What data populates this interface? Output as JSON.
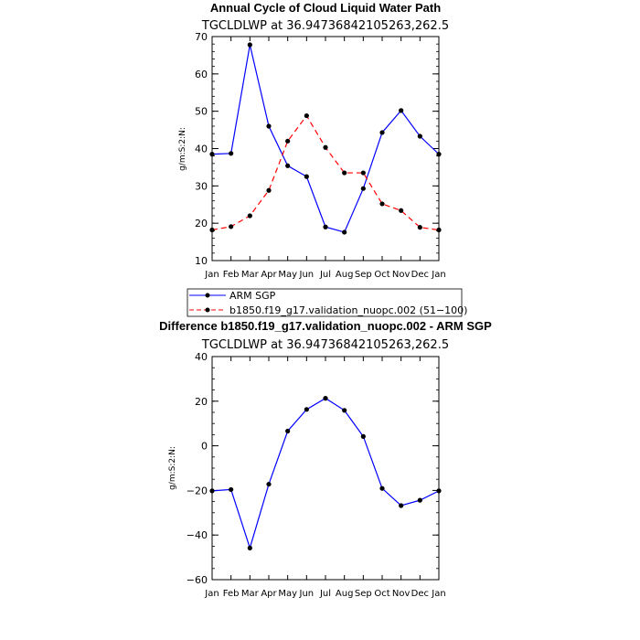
{
  "chart_data": [
    {
      "type": "line",
      "title": "Annual Cycle of Cloud Liquid Water Path",
      "subtitle": "TGCLDLWP at 36.94736842105263,262.5",
      "ylabel": "g/m:S:2:N:",
      "xlabel": "",
      "categories": [
        "Jan",
        "Feb",
        "Mar",
        "Apr",
        "May",
        "Jun",
        "Jul",
        "Aug",
        "Sep",
        "Oct",
        "Nov",
        "Dec",
        "Jan"
      ],
      "ylim": [
        10,
        70
      ],
      "yticks": [
        10,
        20,
        30,
        40,
        50,
        60,
        70
      ],
      "series": [
        {
          "name": "ARM SGP",
          "color": "#0000ff",
          "dash": "solid",
          "values": [
            38.5,
            38.7,
            67.8,
            46.0,
            35.4,
            32.5,
            19.0,
            17.6,
            29.3,
            44.3,
            50.2,
            43.3,
            38.5
          ]
        },
        {
          "name": "b1850.f19_g17.validation_nuopc.002 (51−100)",
          "color": "#ff0000",
          "dash": "dashed",
          "values": [
            18.2,
            19.1,
            22.0,
            28.8,
            42.0,
            48.8,
            40.3,
            33.5,
            33.5,
            25.2,
            23.4,
            18.9,
            18.2
          ]
        }
      ],
      "legend_placement": "below"
    },
    {
      "type": "line",
      "title": "Difference b1850.f19_g17.validation_nuopc.002 - ARM SGP",
      "subtitle": "TGCLDLWP at 36.94736842105263,262.5",
      "ylabel": "g/m:S:2:N:",
      "xlabel": "",
      "categories": [
        "Jan",
        "Feb",
        "Mar",
        "Apr",
        "May",
        "Jun",
        "Jul",
        "Aug",
        "Sep",
        "Oct",
        "Nov",
        "Dec",
        "Jan"
      ],
      "ylim": [
        -60,
        40
      ],
      "yticks": [
        -60,
        -40,
        -20,
        0,
        20,
        40
      ],
      "series": [
        {
          "color": "#0000ff",
          "dash": "solid",
          "values": [
            -20.2,
            -19.6,
            -45.8,
            -17.2,
            6.6,
            16.3,
            21.3,
            15.9,
            4.2,
            -19.1,
            -26.8,
            -24.4,
            -20.2
          ]
        }
      ]
    }
  ]
}
